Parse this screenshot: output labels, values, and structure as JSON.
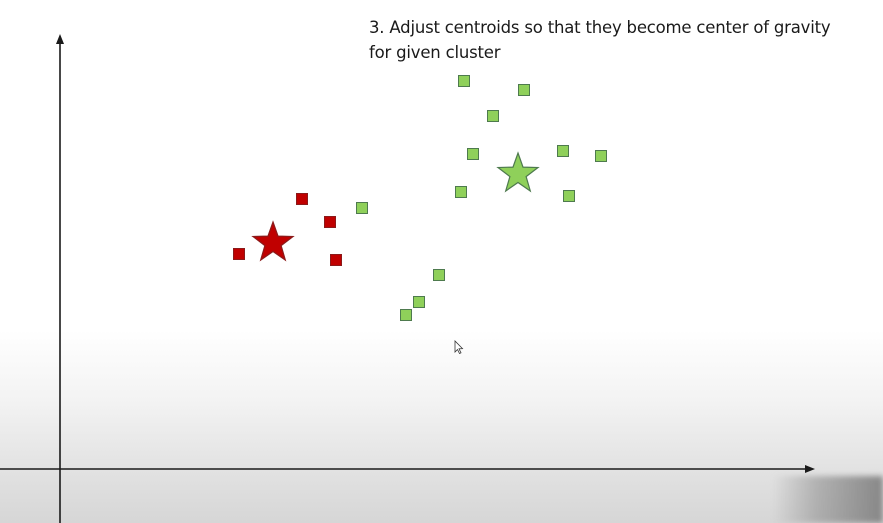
{
  "slide": {
    "title_line1": "3. Adjust centroids so that they become center of gravity",
    "title_line2": "for given cluster"
  },
  "colors": {
    "cluster_red_fill": "#c00000",
    "cluster_red_stroke": "#8b1a1a",
    "cluster_green_fill": "#8fd05a",
    "cluster_green_stroke": "#4e7a4e",
    "axis": "#1a1a1a"
  },
  "chart_data": {
    "type": "scatter",
    "title": "3. Adjust centroids so that they become center of gravity for given cluster",
    "xlabel": "",
    "ylabel": "",
    "axis_ticks": false,
    "grid": false,
    "series": [
      {
        "cluster": "red",
        "marker": "square",
        "points": [
          [
            179,
            215
          ],
          [
            242,
            270
          ],
          [
            270,
            247
          ],
          [
            276,
            209
          ]
        ]
      },
      {
        "cluster": "green",
        "marker": "square",
        "points": [
          [
            302,
            261
          ],
          [
            346,
            154
          ],
          [
            359,
            167
          ],
          [
            379,
            194
          ],
          [
            401,
            277
          ],
          [
            413,
            315
          ],
          [
            404,
            388
          ],
          [
            433,
            353
          ],
          [
            464,
            379
          ],
          [
            503,
            318
          ],
          [
            509,
            273
          ],
          [
            541,
            313
          ]
        ]
      }
    ],
    "centroids": [
      {
        "cluster": "red",
        "marker": "star",
        "x": 213,
        "y": 226
      },
      {
        "cluster": "green",
        "marker": "star",
        "x": 458,
        "y": 295
      }
    ]
  }
}
